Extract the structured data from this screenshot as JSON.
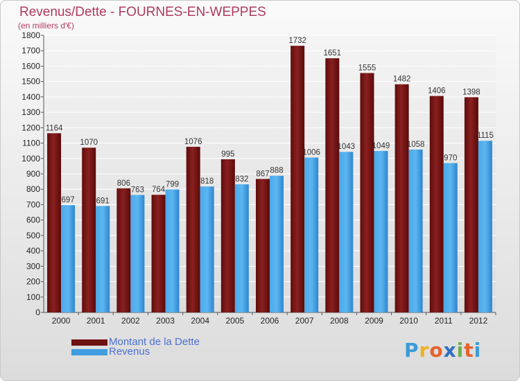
{
  "header": {
    "title": "Revenus/Dette - FOURNES-EN-WEPPES",
    "subtitle": "(en milliers d'€)"
  },
  "legend": [
    {
      "label": "Montant de la Dette",
      "color": "#7a1616"
    },
    {
      "label": "Revenus",
      "color": "#3f9de0"
    }
  ],
  "logo": {
    "text": "Proxiti",
    "letter_colors": [
      "#3a9bd8",
      "#f0b21a",
      "#e8612c",
      "#2f6fbf",
      "#6ab04c",
      "#e8612c",
      "#3a9bd8"
    ]
  },
  "chart_data": {
    "type": "bar",
    "title": "Revenus/Dette - FOURNES-EN-WEPPES",
    "ylabel": "(en milliers d'€)",
    "categories": [
      "2000",
      "2001",
      "2002",
      "2003",
      "2004",
      "2005",
      "2006",
      "2007",
      "2008",
      "2009",
      "2010",
      "2011",
      "2012"
    ],
    "series": [
      {
        "name": "Montant de la Dette",
        "color": "#7a1616",
        "values": [
          1164,
          1070,
          806,
          764,
          1076,
          995,
          867,
          1732,
          1651,
          1555,
          1482,
          1406,
          1398
        ]
      },
      {
        "name": "Revenus",
        "color": "#3f9de0",
        "values": [
          697,
          691,
          763,
          799,
          818,
          832,
          888,
          1006,
          1043,
          1049,
          1058,
          970,
          1115
        ]
      }
    ],
    "ylim": [
      0,
      1800
    ],
    "ytick_step": 100,
    "grid": true,
    "legend_position": "bottom-left"
  }
}
